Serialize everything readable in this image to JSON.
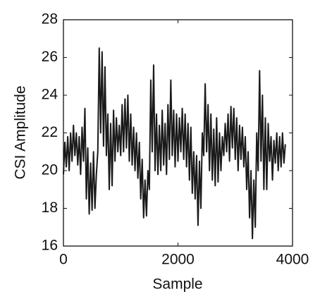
{
  "chart_data": {
    "type": "line",
    "xlabel": "Sample",
    "ylabel": "CSI Amplitude",
    "xlim": [
      0,
      4000
    ],
    "xticks": [
      0,
      2000,
      4000
    ],
    "ylim": [
      16,
      28
    ],
    "yticks": [
      16,
      18,
      20,
      22,
      24,
      26,
      28
    ],
    "x": [
      0,
      25,
      50,
      75,
      100,
      125,
      150,
      175,
      200,
      225,
      250,
      275,
      300,
      325,
      350,
      375,
      400,
      425,
      450,
      475,
      500,
      525,
      550,
      575,
      600,
      625,
      650,
      675,
      700,
      725,
      750,
      775,
      800,
      825,
      850,
      875,
      900,
      925,
      950,
      975,
      1000,
      1025,
      1050,
      1075,
      1100,
      1125,
      1150,
      1175,
      1200,
      1225,
      1250,
      1275,
      1300,
      1325,
      1350,
      1375,
      1400,
      1425,
      1450,
      1475,
      1500,
      1525,
      1550,
      1575,
      1600,
      1625,
      1650,
      1675,
      1700,
      1725,
      1750,
      1775,
      1800,
      1825,
      1850,
      1875,
      1900,
      1925,
      1950,
      1975,
      2000,
      2025,
      2050,
      2075,
      2100,
      2125,
      2150,
      2175,
      2200,
      2225,
      2250,
      2275,
      2300,
      2325,
      2350,
      2375,
      2400,
      2425,
      2450,
      2475,
      2500,
      2525,
      2550,
      2575,
      2600,
      2625,
      2650,
      2675,
      2700,
      2725,
      2750,
      2775,
      2800,
      2825,
      2850,
      2875,
      2900,
      2925,
      2950,
      2975,
      3000,
      3025,
      3050,
      3075,
      3100,
      3125,
      3150,
      3175,
      3200,
      3225,
      3250,
      3275,
      3300,
      3325,
      3350,
      3375,
      3400,
      3425,
      3450,
      3475,
      3500,
      3525,
      3550,
      3575,
      3600,
      3625,
      3650,
      3675,
      3700,
      3725,
      3750,
      3775,
      3800,
      3825,
      3850,
      3875
    ],
    "series": [
      {
        "color": "#1a1a1a",
        "values": [
          19.8,
          21.5,
          20.2,
          21.8,
          20.0,
          22.0,
          20.5,
          22.4,
          20.8,
          22.0,
          20.3,
          21.8,
          19.8,
          22.3,
          20.5,
          23.3,
          18.5,
          21.2,
          17.7,
          20.4,
          17.9,
          21.0,
          18.0,
          19.8,
          21.0,
          26.5,
          22.0,
          26.3,
          21.3,
          25.5,
          20.8,
          23.0,
          19.0,
          22.5,
          19.2,
          23.2,
          20.5,
          22.8,
          21.0,
          22.4,
          20.8,
          23.5,
          21.0,
          23.8,
          21.2,
          24.0,
          20.5,
          23.0,
          20.3,
          22.3,
          20.0,
          22.0,
          19.6,
          21.5,
          18.5,
          20.6,
          17.5,
          19.5,
          17.6,
          20.0,
          19.0,
          24.8,
          21.0,
          25.6,
          20.0,
          23.0,
          19.8,
          22.4,
          20.0,
          23.2,
          20.3,
          22.5,
          19.8,
          23.5,
          20.6,
          24.8,
          20.8,
          23.2,
          20.2,
          23.0,
          20.5,
          22.8,
          21.0,
          23.3,
          20.6,
          23.0,
          20.2,
          22.5,
          19.5,
          22.3,
          18.8,
          21.0,
          18.5,
          20.8,
          17.1,
          20.5,
          18.0,
          22.0,
          20.8,
          24.6,
          21.0,
          23.5,
          20.0,
          23.0,
          19.5,
          22.2,
          19.2,
          22.8,
          19.4,
          22.0,
          20.0,
          21.8,
          20.8,
          22.5,
          21.0,
          23.0,
          20.5,
          23.4,
          21.2,
          23.3,
          20.6,
          22.8,
          20.0,
          22.4,
          20.6,
          22.3,
          20.2,
          21.8,
          19.0,
          21.0,
          17.5,
          20.0,
          16.4,
          19.5,
          17.0,
          22.0,
          20.0,
          25.3,
          20.5,
          24.0,
          19.0,
          22.8,
          19.0,
          22.5,
          20.5,
          21.8,
          19.5,
          21.6,
          20.4,
          22.0,
          20.0,
          21.8,
          20.2,
          22.0,
          20.4,
          21.4
        ]
      }
    ]
  }
}
